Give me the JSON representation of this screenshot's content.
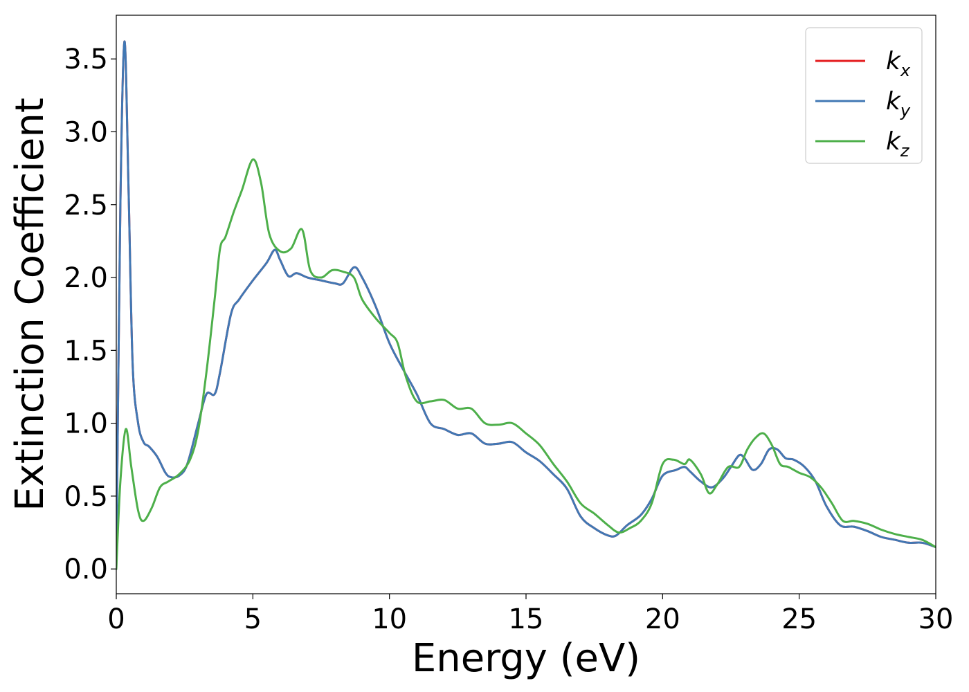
{
  "chart_data": {
    "type": "line",
    "xlabel": "Energy (eV)",
    "ylabel": "Extinction Coefficient",
    "xlim": [
      0,
      30
    ],
    "ylim": [
      -0.17,
      3.8
    ],
    "xticks": [
      0,
      5,
      10,
      15,
      20,
      25,
      30
    ],
    "xtick_labels": [
      "0",
      "5",
      "10",
      "15",
      "20",
      "25",
      "30"
    ],
    "yticks": [
      0.0,
      0.5,
      1.0,
      1.5,
      2.0,
      2.5,
      3.0,
      3.5
    ],
    "ytick_labels": [
      "0.0",
      "0.5",
      "1.0",
      "1.5",
      "2.0",
      "2.5",
      "3.0",
      "3.5"
    ],
    "grid": false,
    "legend_position": "top-right",
    "series": [
      {
        "name": "k",
        "subscript": "x",
        "color": "#e41a1c",
        "x": [
          0,
          0.15,
          0.3,
          0.45,
          0.6,
          0.8,
          1.0,
          1.2,
          1.5,
          1.8,
          2.0,
          2.3,
          2.6,
          3.0,
          3.3,
          3.6,
          3.8,
          4.2,
          4.5,
          5.0,
          5.5,
          5.8,
          6.0,
          6.3,
          6.6,
          7.0,
          7.5,
          8.0,
          8.3,
          8.7,
          9.0,
          9.5,
          10.0,
          10.5,
          11.0,
          11.5,
          12.0,
          12.5,
          13.0,
          13.5,
          14.0,
          14.5,
          15.0,
          15.5,
          16.0,
          16.5,
          17.0,
          17.5,
          18.0,
          18.3,
          18.7,
          19.2,
          19.6,
          20.0,
          20.5,
          20.8,
          21.0,
          21.4,
          21.8,
          22.2,
          22.5,
          22.8,
          23.0,
          23.3,
          23.6,
          23.9,
          24.2,
          24.5,
          24.8,
          25.2,
          25.6,
          26.0,
          26.5,
          27.0,
          27.5,
          28.0,
          28.5,
          29.0,
          29.5,
          30.0
        ],
        "y": [
          0.0,
          2.5,
          3.62,
          2.6,
          1.4,
          1.0,
          0.87,
          0.84,
          0.77,
          0.66,
          0.63,
          0.64,
          0.72,
          1.0,
          1.2,
          1.2,
          1.35,
          1.75,
          1.85,
          1.98,
          2.1,
          2.19,
          2.12,
          2.01,
          2.03,
          2.0,
          1.98,
          1.96,
          1.96,
          2.07,
          2.0,
          1.8,
          1.55,
          1.37,
          1.2,
          1.0,
          0.96,
          0.92,
          0.93,
          0.86,
          0.86,
          0.87,
          0.8,
          0.74,
          0.65,
          0.55,
          0.36,
          0.28,
          0.23,
          0.23,
          0.3,
          0.37,
          0.48,
          0.64,
          0.68,
          0.7,
          0.67,
          0.6,
          0.56,
          0.62,
          0.7,
          0.78,
          0.76,
          0.68,
          0.72,
          0.82,
          0.82,
          0.76,
          0.75,
          0.7,
          0.6,
          0.43,
          0.3,
          0.29,
          0.26,
          0.22,
          0.2,
          0.18,
          0.18,
          0.15
        ]
      },
      {
        "name": "k",
        "subscript": "y",
        "color": "#4178b4",
        "x": [
          0,
          0.15,
          0.3,
          0.45,
          0.6,
          0.8,
          1.0,
          1.2,
          1.5,
          1.8,
          2.0,
          2.3,
          2.6,
          3.0,
          3.3,
          3.6,
          3.8,
          4.2,
          4.5,
          5.0,
          5.5,
          5.8,
          6.0,
          6.3,
          6.6,
          7.0,
          7.5,
          8.0,
          8.3,
          8.7,
          9.0,
          9.5,
          10.0,
          10.5,
          11.0,
          11.5,
          12.0,
          12.5,
          13.0,
          13.5,
          14.0,
          14.5,
          15.0,
          15.5,
          16.0,
          16.5,
          17.0,
          17.5,
          18.0,
          18.3,
          18.7,
          19.2,
          19.6,
          20.0,
          20.5,
          20.8,
          21.0,
          21.4,
          21.8,
          22.2,
          22.5,
          22.8,
          23.0,
          23.3,
          23.6,
          23.9,
          24.2,
          24.5,
          24.8,
          25.2,
          25.6,
          26.0,
          26.5,
          27.0,
          27.5,
          28.0,
          28.5,
          29.0,
          29.5,
          30.0
        ],
        "y": [
          0.0,
          2.5,
          3.62,
          2.6,
          1.4,
          1.0,
          0.87,
          0.84,
          0.77,
          0.66,
          0.63,
          0.64,
          0.72,
          1.0,
          1.2,
          1.2,
          1.35,
          1.75,
          1.85,
          1.98,
          2.1,
          2.19,
          2.12,
          2.01,
          2.03,
          2.0,
          1.98,
          1.96,
          1.96,
          2.07,
          2.0,
          1.8,
          1.55,
          1.37,
          1.2,
          1.0,
          0.96,
          0.92,
          0.93,
          0.86,
          0.86,
          0.87,
          0.8,
          0.74,
          0.65,
          0.55,
          0.36,
          0.28,
          0.23,
          0.23,
          0.3,
          0.37,
          0.48,
          0.64,
          0.68,
          0.7,
          0.67,
          0.6,
          0.56,
          0.62,
          0.7,
          0.78,
          0.76,
          0.68,
          0.72,
          0.82,
          0.82,
          0.76,
          0.75,
          0.7,
          0.6,
          0.43,
          0.3,
          0.29,
          0.26,
          0.22,
          0.2,
          0.18,
          0.18,
          0.15
        ]
      },
      {
        "name": "k",
        "subscript": "z",
        "color": "#4daf4a",
        "x": [
          0,
          0.15,
          0.35,
          0.55,
          0.8,
          1.0,
          1.3,
          1.6,
          1.9,
          2.3,
          2.7,
          3.0,
          3.3,
          3.6,
          3.8,
          4.0,
          4.3,
          4.6,
          5.0,
          5.3,
          5.6,
          6.0,
          6.4,
          6.8,
          7.1,
          7.5,
          7.9,
          8.3,
          8.7,
          9.0,
          9.5,
          10.0,
          10.3,
          10.6,
          11.0,
          11.5,
          12.0,
          12.5,
          13.0,
          13.5,
          14.0,
          14.5,
          15.0,
          15.5,
          16.0,
          16.5,
          17.0,
          17.5,
          18.0,
          18.4,
          18.8,
          19.2,
          19.6,
          20.0,
          20.4,
          20.8,
          21.0,
          21.4,
          21.7,
          22.0,
          22.4,
          22.8,
          23.1,
          23.4,
          23.7,
          24.0,
          24.3,
          24.6,
          25.0,
          25.4,
          25.8,
          26.2,
          26.6,
          27.0,
          27.5,
          28.0,
          28.5,
          29.0,
          29.5,
          30.0
        ],
        "y": [
          0.0,
          0.6,
          0.96,
          0.7,
          0.4,
          0.33,
          0.42,
          0.56,
          0.6,
          0.65,
          0.75,
          0.95,
          1.35,
          1.85,
          2.2,
          2.28,
          2.45,
          2.6,
          2.81,
          2.65,
          2.3,
          2.18,
          2.2,
          2.33,
          2.05,
          2.0,
          2.05,
          2.04,
          2.0,
          1.85,
          1.72,
          1.62,
          1.55,
          1.32,
          1.15,
          1.15,
          1.16,
          1.1,
          1.1,
          1.0,
          0.99,
          1.0,
          0.93,
          0.85,
          0.72,
          0.6,
          0.45,
          0.38,
          0.3,
          0.25,
          0.28,
          0.33,
          0.45,
          0.72,
          0.75,
          0.72,
          0.75,
          0.65,
          0.52,
          0.58,
          0.7,
          0.7,
          0.82,
          0.9,
          0.93,
          0.85,
          0.72,
          0.7,
          0.66,
          0.63,
          0.56,
          0.45,
          0.33,
          0.33,
          0.31,
          0.27,
          0.24,
          0.22,
          0.2,
          0.15
        ]
      }
    ]
  }
}
